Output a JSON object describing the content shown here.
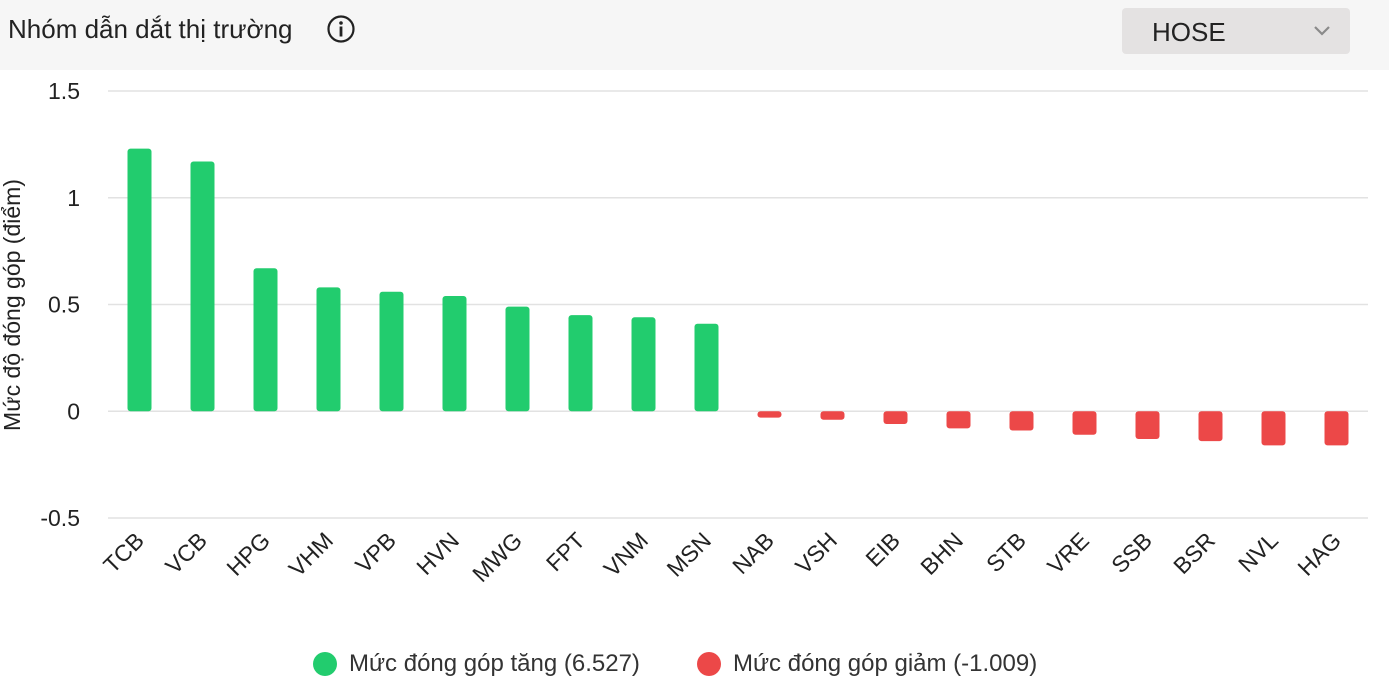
{
  "header": {
    "title": "Nhóm dẫn dắt thị trường",
    "info_icon": "info-circle-icon",
    "exchange_select": {
      "value": "HOSE",
      "icon": "chevron-down-icon"
    }
  },
  "colors": {
    "positive": "#22cc6e",
    "negative": "#ec4848",
    "grid": "#e2e2e2"
  },
  "legend": {
    "positive_label": "Mức đóng góp tăng (6.527)",
    "negative_label": "Mức đóng góp giảm (-1.009)"
  },
  "chart_data": {
    "type": "bar",
    "ylabel": "Mức độ đóng góp (điểm)",
    "ylim": [
      -0.5,
      1.5
    ],
    "yticks": [
      1.5,
      1,
      0.5,
      0,
      -0.5
    ],
    "ytick_labels": [
      "1.5",
      "1",
      "0.5",
      "0",
      "-0.5"
    ],
    "grid": true,
    "legend_position": "bottom",
    "categories": [
      "TCB",
      "VCB",
      "HPG",
      "VHM",
      "VPB",
      "HVN",
      "MWG",
      "FPT",
      "VNM",
      "MSN",
      "NAB",
      "VSH",
      "EIB",
      "BHN",
      "STB",
      "VRE",
      "SSB",
      "BSR",
      "NVL",
      "HAG"
    ],
    "values": [
      1.23,
      1.17,
      0.67,
      0.58,
      0.56,
      0.54,
      0.49,
      0.45,
      0.44,
      0.41,
      -0.03,
      -0.04,
      -0.06,
      -0.08,
      -0.09,
      -0.11,
      -0.13,
      -0.14,
      -0.16,
      -0.16
    ]
  }
}
